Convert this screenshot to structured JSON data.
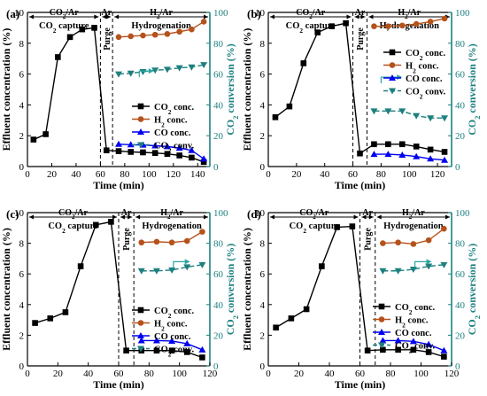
{
  "colors": {
    "co2": "#000000",
    "h2": "#B5521B",
    "co": "#0000F0",
    "conv": "#1E7F7F",
    "right_axis": "#1E8080",
    "arrow": "#2CA7A0"
  },
  "chart_data": [
    {
      "type": "line",
      "panel_label": "(a)",
      "xlabel": "Time (min)",
      "ylabel": "Effluent concentration (%)",
      "y2label": "CO2 conversion (%)",
      "xlim": [
        0,
        150
      ],
      "xticks": [
        0,
        20,
        40,
        60,
        80,
        100,
        120,
        140
      ],
      "ylim": [
        0,
        10
      ],
      "yticks": [
        0,
        2,
        4,
        6,
        8,
        10
      ],
      "y2lim": [
        0,
        100
      ],
      "y2ticks": [
        0,
        20,
        40,
        60,
        80,
        100
      ],
      "phase_lines": [
        60,
        70
      ],
      "phases": [
        "CO2/Ar",
        "Ar",
        "H2/Ar"
      ],
      "phase_labels": [
        "CO2 capture",
        "Purge",
        "Hydrogenation"
      ],
      "legend": [
        "CO2 conc.",
        "H2 conc.",
        "CO conc.",
        "CO2 conv."
      ],
      "legend_position": "center-right",
      "series": [
        {
          "name": "CO2 conc.",
          "axis": "left",
          "x": [
            5,
            15,
            25,
            35,
            45,
            55,
            65,
            75,
            85,
            95,
            105,
            115,
            125,
            135,
            145
          ],
          "values": [
            1.75,
            2.1,
            7.1,
            8.4,
            8.9,
            9.0,
            1.05,
            1.0,
            0.95,
            0.92,
            0.88,
            0.82,
            0.72,
            0.58,
            0.3
          ]
        },
        {
          "name": "H2 conc.",
          "axis": "left",
          "x": [
            75,
            85,
            95,
            105,
            115,
            125,
            135,
            145
          ],
          "values": [
            8.4,
            8.45,
            8.5,
            8.55,
            8.6,
            8.75,
            8.9,
            9.4
          ]
        },
        {
          "name": "CO conc.",
          "axis": "left",
          "x": [
            75,
            85,
            95,
            105,
            115,
            125,
            135,
            145
          ],
          "values": [
            1.45,
            1.42,
            1.4,
            1.35,
            1.3,
            1.2,
            1.05,
            0.5
          ]
        },
        {
          "name": "CO2 conv.",
          "axis": "right",
          "x": [
            75,
            85,
            95,
            105,
            115,
            125,
            135,
            145
          ],
          "values": [
            60,
            60.5,
            61.5,
            62.5,
            63,
            64,
            64.5,
            66
          ]
        }
      ],
      "arrow": {
        "x": [
          92,
          104
        ],
        "y": 62
      }
    },
    {
      "type": "line",
      "panel_label": "(b)",
      "xlabel": "Time (min)",
      "ylabel": "Effluent concentration (%)",
      "y2label": "CO2 conversion (%)",
      "xlim": [
        0,
        130
      ],
      "xticks": [
        0,
        20,
        40,
        60,
        80,
        100,
        120
      ],
      "ylim": [
        0,
        10
      ],
      "yticks": [
        0,
        2,
        4,
        6,
        8,
        10
      ],
      "y2lim": [
        0,
        100
      ],
      "y2ticks": [
        0,
        20,
        40,
        60,
        80,
        100
      ],
      "phase_lines": [
        60,
        70
      ],
      "phases": [
        "CO2/Ar",
        "Ar",
        "H2/Ar"
      ],
      "phase_labels": [
        "CO2 capture",
        "Purge",
        "Hydrogenation"
      ],
      "legend": [
        "CO2 conc.",
        "H2 conc.",
        "CO conc.",
        "CO2 conv."
      ],
      "legend_position": "right",
      "series": [
        {
          "name": "CO2 conc.",
          "axis": "left",
          "x": [
            5,
            15,
            25,
            35,
            45,
            55,
            65,
            75,
            85,
            95,
            105,
            115,
            125
          ],
          "values": [
            3.2,
            3.9,
            6.7,
            8.7,
            9.1,
            9.3,
            0.85,
            1.45,
            1.45,
            1.45,
            1.3,
            1.1,
            0.95
          ]
        },
        {
          "name": "H2 conc.",
          "axis": "left",
          "x": [
            75,
            85,
            95,
            105,
            115,
            125
          ],
          "values": [
            9.1,
            9.1,
            9.15,
            9.25,
            9.4,
            9.6
          ]
        },
        {
          "name": "CO conc.",
          "axis": "left",
          "x": [
            75,
            85,
            95,
            105,
            115,
            125
          ],
          "values": [
            0.8,
            0.8,
            0.75,
            0.65,
            0.5,
            0.42
          ]
        },
        {
          "name": "CO2 conv.",
          "axis": "right",
          "x": [
            75,
            85,
            95,
            105,
            115,
            125
          ],
          "values": [
            36,
            36,
            36,
            33,
            31.5,
            31.5
          ]
        }
      ],
      "arrow": {
        "x": [
          80,
          95
        ],
        "y": 58
      }
    },
    {
      "type": "line",
      "panel_label": "(c)",
      "xlabel": "Time (min)",
      "ylabel": "Effluent concentration (%)",
      "y2label": "CO2 conversion (%)",
      "xlim": [
        0,
        120
      ],
      "xticks": [
        0,
        20,
        40,
        60,
        80,
        100,
        120
      ],
      "ylim": [
        0,
        10
      ],
      "yticks": [
        0,
        2,
        4,
        6,
        8,
        10
      ],
      "y2lim": [
        0,
        100
      ],
      "y2ticks": [
        0,
        20,
        40,
        60,
        80,
        100
      ],
      "phase_lines": [
        60,
        70
      ],
      "phases": [
        "CO2/Ar",
        "Ar",
        "H2/Ar"
      ],
      "phase_labels": [
        "CO2 capture",
        "Purge",
        "Hydrogenation"
      ],
      "legend": [
        "CO2 conc.",
        "H2 conc.",
        "CO conc.",
        "CO2 conv."
      ],
      "legend_position": "bottom-right",
      "series": [
        {
          "name": "CO2 conc.",
          "axis": "left",
          "x": [
            5,
            15,
            25,
            35,
            45,
            55,
            65,
            75,
            85,
            95,
            105,
            115
          ],
          "values": [
            2.8,
            3.1,
            3.5,
            6.5,
            9.2,
            9.4,
            1.0,
            1.0,
            1.0,
            1.0,
            0.9,
            0.55
          ]
        },
        {
          "name": "H2 conc.",
          "axis": "left",
          "x": [
            75,
            85,
            95,
            105,
            115
          ],
          "values": [
            8.05,
            8.1,
            8.05,
            8.15,
            8.75
          ]
        },
        {
          "name": "CO conc.",
          "axis": "left",
          "x": [
            75,
            85,
            95,
            105,
            115
          ],
          "values": [
            1.65,
            1.65,
            1.62,
            1.45,
            1.05
          ]
        },
        {
          "name": "CO2 conv.",
          "axis": "right",
          "x": [
            75,
            85,
            95,
            105,
            115
          ],
          "values": [
            62,
            62,
            62.5,
            64.5,
            66
          ]
        }
      ],
      "arrow": {
        "x": [
          96,
          107
        ],
        "y": 68
      }
    },
    {
      "type": "line",
      "panel_label": "(d)",
      "xlabel": "Time (min)",
      "ylabel": "Effluent concentration (%)",
      "y2label": "CO2 conversion (%)",
      "xlim": [
        0,
        120
      ],
      "xticks": [
        0,
        20,
        40,
        60,
        80,
        100,
        120
      ],
      "ylim": [
        0,
        10
      ],
      "yticks": [
        0,
        2,
        4,
        6,
        8,
        10
      ],
      "y2lim": [
        0,
        100
      ],
      "y2ticks": [
        0,
        20,
        40,
        60,
        80,
        100
      ],
      "phase_lines": [
        60,
        70
      ],
      "phases": [
        "CO2/Ar",
        "Ar",
        "H2/Ar"
      ],
      "phase_labels": [
        "CO2 capture",
        "Purge",
        "Hydrogenation"
      ],
      "legend": [
        "CO2 conc.",
        "H2 conc.",
        "CO conc.",
        "CO2 conv."
      ],
      "legend_position": "bottom-right",
      "series": [
        {
          "name": "CO2 conc.",
          "axis": "left",
          "x": [
            5,
            15,
            25,
            35,
            45,
            55,
            65,
            75,
            85,
            95,
            105,
            115
          ],
          "values": [
            2.5,
            3.1,
            3.7,
            6.5,
            9.05,
            9.1,
            1.0,
            1.05,
            1.05,
            1.05,
            0.9,
            0.6
          ]
        },
        {
          "name": "H2 conc.",
          "axis": "left",
          "x": [
            75,
            85,
            95,
            105,
            115
          ],
          "values": [
            8.0,
            8.05,
            7.95,
            8.2,
            8.95
          ]
        },
        {
          "name": "CO conc.",
          "axis": "left",
          "x": [
            75,
            85,
            95,
            105,
            115
          ],
          "values": [
            1.65,
            1.65,
            1.6,
            1.4,
            1.0
          ]
        },
        {
          "name": "CO2 conv.",
          "axis": "right",
          "x": [
            75,
            85,
            95,
            105,
            115
          ],
          "values": [
            62,
            62,
            63,
            65,
            66
          ]
        }
      ],
      "arrow": {
        "x": [
          96,
          107
        ],
        "y": 68
      }
    }
  ]
}
